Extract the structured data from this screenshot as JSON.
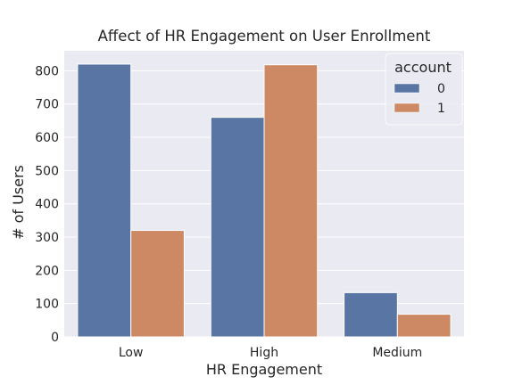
{
  "chart_data": {
    "type": "bar",
    "title": "Affect of HR Engagement on User Enrollment",
    "xlabel": "HR Engagement",
    "ylabel": "# of Users",
    "categories": [
      "Low",
      "High",
      "Medium"
    ],
    "ylim": [
      0,
      860
    ],
    "yticks": [
      0,
      100,
      200,
      300,
      400,
      500,
      600,
      700,
      800
    ],
    "grid": true,
    "legend": {
      "title": "account",
      "placement": "top-right"
    },
    "series": [
      {
        "name": "0",
        "color": "#5875a4",
        "values": [
          820,
          660,
          133
        ]
      },
      {
        "name": "1",
        "color": "#cc8963",
        "values": [
          320,
          818,
          68
        ]
      }
    ],
    "background_color": "#eaeaf2"
  }
}
